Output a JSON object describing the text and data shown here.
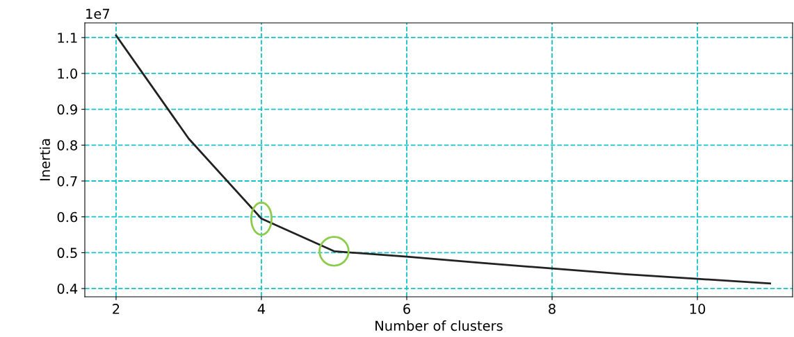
{
  "chart_data": {
    "type": "line",
    "xlabel": "Number of clusters",
    "ylabel": "Inertia",
    "annotations": [
      "1e7"
    ],
    "x": [
      2,
      3,
      4,
      5,
      6,
      7,
      8,
      9,
      10,
      11
    ],
    "series": [
      {
        "color": "#222222",
        "values": [
          1.106,
          0.818,
          0.595,
          0.504,
          0.489,
          0.472,
          0.456,
          0.44,
          0.427,
          0.414
        ]
      }
    ],
    "xlim": [
      1.57,
      11.31
    ],
    "ylim": [
      0.377,
      1.141
    ],
    "xticks": [
      2,
      4,
      6,
      8,
      10
    ],
    "yticks": [
      {
        "value": 0.4,
        "label": "0.4"
      },
      {
        "value": 0.5,
        "label": "0.5"
      },
      {
        "value": 0.6,
        "label": "0.6"
      },
      {
        "value": 0.7,
        "label": "0.7"
      },
      {
        "value": 0.8,
        "label": "0.8"
      },
      {
        "value": 0.9,
        "label": "0.9"
      },
      {
        "value": 1.0,
        "label": "1.0"
      },
      {
        "value": 1.1,
        "label": "1.1"
      }
    ],
    "grid": true,
    "marker": "none",
    "line_style": "solid"
  }
}
